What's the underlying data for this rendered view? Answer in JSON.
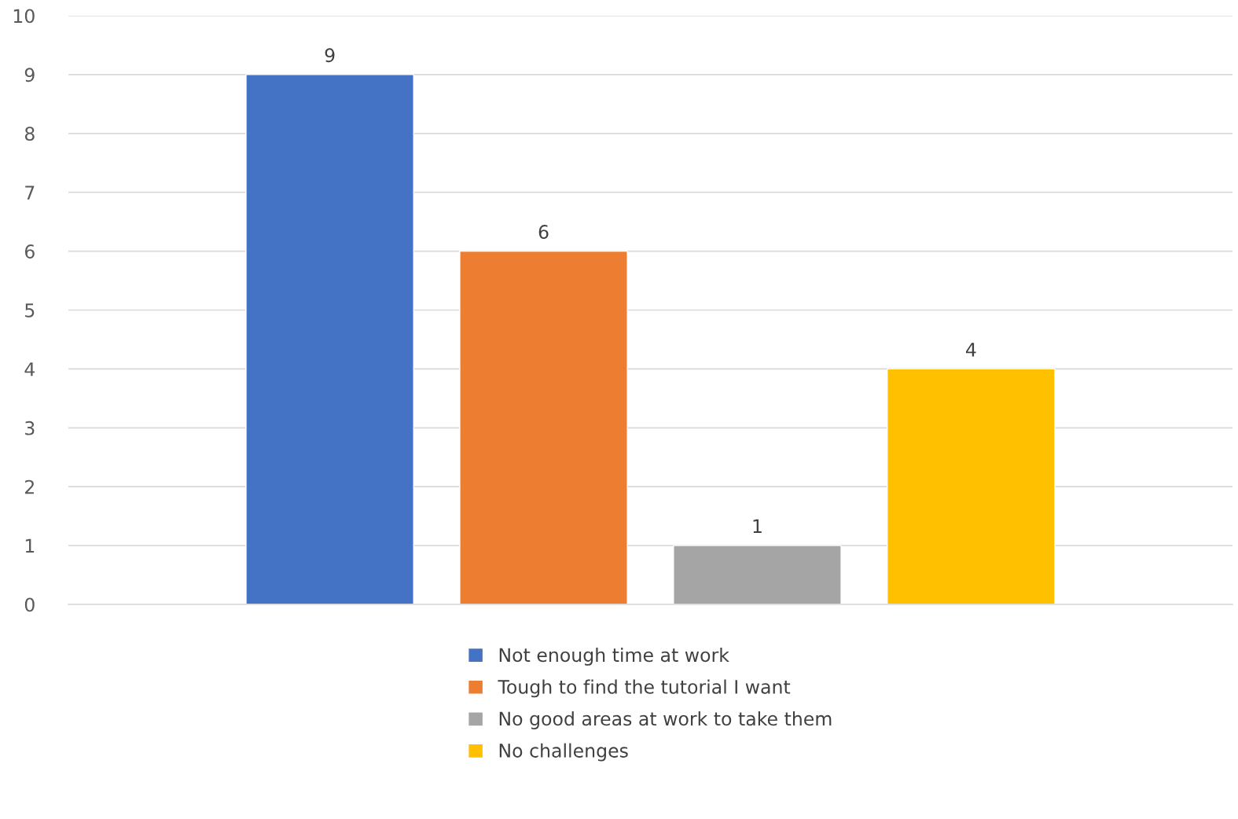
{
  "chart_data": {
    "type": "bar",
    "categories": [
      null
    ],
    "series": [
      {
        "name": "Not enough time at work",
        "color": "#4472c4",
        "values": [
          9
        ]
      },
      {
        "name": "Tough to find the tutorial I want",
        "color": "#ed7d31",
        "values": [
          6
        ]
      },
      {
        "name": "No good areas at work to take them",
        "color": "#a5a5a5",
        "values": [
          1
        ]
      },
      {
        "name": "No challenges",
        "color": "#ffc000",
        "values": [
          4
        ]
      }
    ],
    "ylim": [
      0,
      10
    ],
    "yticks": [
      0,
      1,
      2,
      3,
      4,
      5,
      6,
      7,
      8,
      9,
      10
    ],
    "grid": "y",
    "legend": "bottom",
    "data_labels": true
  }
}
